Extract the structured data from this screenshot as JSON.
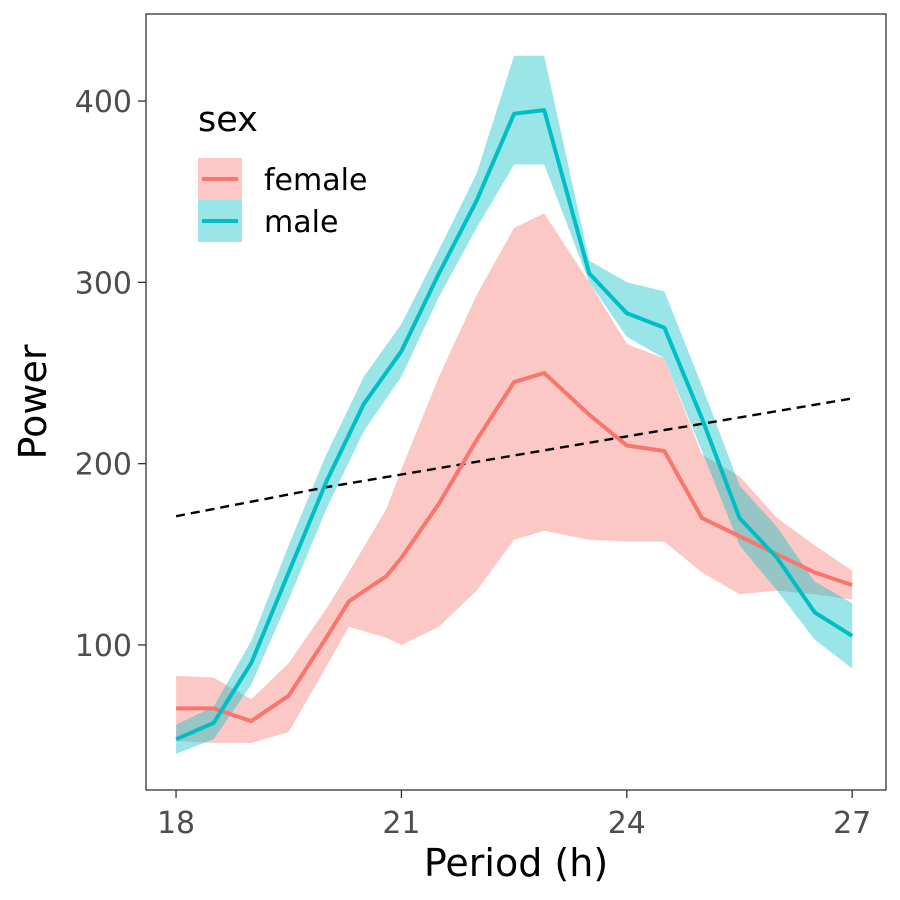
{
  "chart_data": {
    "type": "line",
    "xlabel": "Period (h)",
    "ylabel": "Power",
    "xlim": [
      17.6,
      27.45
    ],
    "ylim": [
      20,
      448
    ],
    "x_ticks": [
      18,
      21,
      24,
      27
    ],
    "y_ticks": [
      100,
      200,
      300,
      400
    ],
    "grid": false,
    "legend": {
      "title": "sex",
      "position": "top-left"
    },
    "series": [
      {
        "name": "female",
        "color": "#F8766D",
        "points": [
          {
            "x": 18.0,
            "y": 65,
            "lo": 47,
            "hi": 83
          },
          {
            "x": 18.5,
            "y": 65,
            "lo": 46,
            "hi": 82
          },
          {
            "x": 19.0,
            "y": 58,
            "lo": 46,
            "hi": 70
          },
          {
            "x": 19.5,
            "y": 72,
            "lo": 52,
            "hi": 90
          },
          {
            "x": 20.0,
            "y": 104,
            "lo": 88,
            "hi": 120
          },
          {
            "x": 20.3,
            "y": 124,
            "lo": 110,
            "hi": 140
          },
          {
            "x": 20.8,
            "y": 138,
            "lo": 104,
            "hi": 175
          },
          {
            "x": 21.0,
            "y": 148,
            "lo": 100,
            "hi": 197
          },
          {
            "x": 21.5,
            "y": 178,
            "lo": 110,
            "hi": 248
          },
          {
            "x": 22.0,
            "y": 213,
            "lo": 130,
            "hi": 293
          },
          {
            "x": 22.5,
            "y": 245,
            "lo": 158,
            "hi": 330
          },
          {
            "x": 22.9,
            "y": 250,
            "lo": 163,
            "hi": 338
          },
          {
            "x": 23.5,
            "y": 227,
            "lo": 158,
            "hi": 300
          },
          {
            "x": 24.0,
            "y": 210,
            "lo": 157,
            "hi": 266
          },
          {
            "x": 24.5,
            "y": 207,
            "lo": 157,
            "hi": 258
          },
          {
            "x": 25.0,
            "y": 170,
            "lo": 140,
            "hi": 205
          },
          {
            "x": 25.5,
            "y": 160,
            "lo": 128,
            "hi": 193
          },
          {
            "x": 26.0,
            "y": 150,
            "lo": 130,
            "hi": 170
          },
          {
            "x": 26.5,
            "y": 140,
            "lo": 128,
            "hi": 155
          },
          {
            "x": 27.0,
            "y": 133,
            "lo": 125,
            "hi": 141
          }
        ]
      },
      {
        "name": "male",
        "color": "#00BFC4",
        "points": [
          {
            "x": 18.0,
            "y": 48,
            "lo": 40,
            "hi": 56
          },
          {
            "x": 18.5,
            "y": 57,
            "lo": 48,
            "hi": 66
          },
          {
            "x": 19.0,
            "y": 90,
            "lo": 78,
            "hi": 102
          },
          {
            "x": 19.5,
            "y": 140,
            "lo": 125,
            "hi": 155
          },
          {
            "x": 20.0,
            "y": 190,
            "lo": 175,
            "hi": 205
          },
          {
            "x": 20.5,
            "y": 233,
            "lo": 218,
            "hi": 248
          },
          {
            "x": 21.0,
            "y": 262,
            "lo": 248,
            "hi": 277
          },
          {
            "x": 21.5,
            "y": 305,
            "lo": 292,
            "hi": 318
          },
          {
            "x": 22.0,
            "y": 345,
            "lo": 330,
            "hi": 360
          },
          {
            "x": 22.5,
            "y": 393,
            "lo": 365,
            "hi": 425
          },
          {
            "x": 22.9,
            "y": 395,
            "lo": 365,
            "hi": 425
          },
          {
            "x": 23.5,
            "y": 305,
            "lo": 300,
            "hi": 312
          },
          {
            "x": 24.0,
            "y": 283,
            "lo": 270,
            "hi": 300
          },
          {
            "x": 24.5,
            "y": 275,
            "lo": 258,
            "hi": 295
          },
          {
            "x": 25.0,
            "y": 225,
            "lo": 207,
            "hi": 243
          },
          {
            "x": 25.5,
            "y": 170,
            "lo": 155,
            "hi": 188
          },
          {
            "x": 26.0,
            "y": 148,
            "lo": 130,
            "hi": 165
          },
          {
            "x": 26.5,
            "y": 118,
            "lo": 103,
            "hi": 135
          },
          {
            "x": 27.0,
            "y": 105,
            "lo": 87,
            "hi": 123
          }
        ]
      }
    ],
    "reference_line": {
      "style": "dashed",
      "color": "#000000",
      "points": [
        {
          "x": 18.0,
          "y": 171
        },
        {
          "x": 19.0,
          "y": 179
        },
        {
          "x": 20.0,
          "y": 187
        },
        {
          "x": 21.0,
          "y": 194
        },
        {
          "x": 22.0,
          "y": 201
        },
        {
          "x": 23.0,
          "y": 208
        },
        {
          "x": 24.0,
          "y": 215
        },
        {
          "x": 25.0,
          "y": 222
        },
        {
          "x": 26.0,
          "y": 229
        },
        {
          "x": 27.0,
          "y": 236
        }
      ]
    }
  }
}
